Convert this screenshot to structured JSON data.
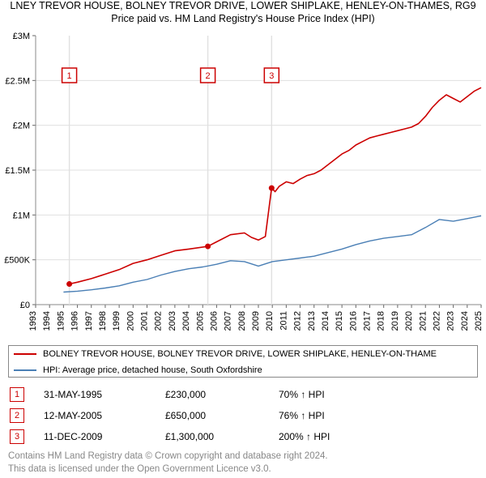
{
  "title_line1": "LNEY TREVOR HOUSE, BOLNEY TREVOR DRIVE, LOWER SHIPLAKE, HENLEY-ON-THAMES, RG9",
  "title_line2": "Price paid vs. HM Land Registry's House Price Index (HPI)",
  "chart": {
    "type": "line",
    "background_color": "#ffffff",
    "grid_color": "#e0e0e0",
    "axis_color": "#888888",
    "tick_color": "#666666",
    "label_color": "#000000",
    "label_fontsize": 11,
    "title_fontsize": 12.5,
    "x": {
      "min": 1993,
      "max": 2025,
      "tick_step": 1,
      "labels": [
        "1993",
        "1994",
        "1995",
        "1996",
        "1997",
        "1998",
        "1999",
        "2000",
        "2001",
        "2002",
        "2003",
        "2004",
        "2005",
        "2006",
        "2007",
        "2008",
        "2009",
        "2010",
        "2011",
        "2012",
        "2013",
        "2014",
        "2015",
        "2016",
        "2017",
        "2018",
        "2019",
        "2020",
        "2021",
        "2022",
        "2023",
        "2024",
        "2025"
      ]
    },
    "y": {
      "min": 0,
      "max": 3000000,
      "tick_step": 500000,
      "labels": [
        "£0",
        "£500K",
        "£1M",
        "£1.5M",
        "£2M",
        "£2.5M",
        "£3M"
      ]
    },
    "series": [
      {
        "name": "property",
        "label": "BOLNEY TREVOR HOUSE, BOLNEY TREVOR DRIVE, LOWER SHIPLAKE, HENLEY-ON-THAME",
        "color": "#cc0000",
        "line_width": 1.6,
        "marker_radius": 3.5,
        "markers_at": [
          1995.42,
          2005.37,
          2009.95
        ],
        "data": [
          [
            1995.42,
            230000
          ],
          [
            1996,
            250000
          ],
          [
            1997,
            290000
          ],
          [
            1998,
            340000
          ],
          [
            1999,
            390000
          ],
          [
            2000,
            460000
          ],
          [
            2001,
            500000
          ],
          [
            2002,
            550000
          ],
          [
            2003,
            600000
          ],
          [
            2004,
            620000
          ],
          [
            2005.37,
            650000
          ],
          [
            2006,
            700000
          ],
          [
            2007,
            780000
          ],
          [
            2008,
            800000
          ],
          [
            2008.5,
            750000
          ],
          [
            2009,
            720000
          ],
          [
            2009.5,
            760000
          ],
          [
            2009.95,
            1300000
          ],
          [
            2010.2,
            1260000
          ],
          [
            2010.5,
            1320000
          ],
          [
            2011,
            1370000
          ],
          [
            2011.5,
            1350000
          ],
          [
            2012,
            1400000
          ],
          [
            2012.5,
            1440000
          ],
          [
            2013,
            1460000
          ],
          [
            2013.5,
            1500000
          ],
          [
            2014,
            1560000
          ],
          [
            2014.5,
            1620000
          ],
          [
            2015,
            1680000
          ],
          [
            2015.5,
            1720000
          ],
          [
            2016,
            1780000
          ],
          [
            2016.5,
            1820000
          ],
          [
            2017,
            1860000
          ],
          [
            2017.5,
            1880000
          ],
          [
            2018,
            1900000
          ],
          [
            2018.5,
            1920000
          ],
          [
            2019,
            1940000
          ],
          [
            2019.5,
            1960000
          ],
          [
            2020,
            1980000
          ],
          [
            2020.5,
            2020000
          ],
          [
            2021,
            2100000
          ],
          [
            2021.5,
            2200000
          ],
          [
            2022,
            2280000
          ],
          [
            2022.5,
            2340000
          ],
          [
            2023,
            2300000
          ],
          [
            2023.5,
            2260000
          ],
          [
            2024,
            2320000
          ],
          [
            2024.5,
            2380000
          ],
          [
            2025,
            2420000
          ]
        ]
      },
      {
        "name": "hpi",
        "label": "HPI: Average price, detached house, South Oxfordshire",
        "color": "#4a7fb5",
        "line_width": 1.4,
        "data": [
          [
            1995,
            140000
          ],
          [
            1996,
            150000
          ],
          [
            1997,
            165000
          ],
          [
            1998,
            185000
          ],
          [
            1999,
            210000
          ],
          [
            2000,
            250000
          ],
          [
            2001,
            280000
          ],
          [
            2002,
            330000
          ],
          [
            2003,
            370000
          ],
          [
            2004,
            400000
          ],
          [
            2005,
            420000
          ],
          [
            2006,
            450000
          ],
          [
            2007,
            490000
          ],
          [
            2008,
            480000
          ],
          [
            2009,
            430000
          ],
          [
            2010,
            480000
          ],
          [
            2011,
            500000
          ],
          [
            2012,
            520000
          ],
          [
            2013,
            540000
          ],
          [
            2014,
            580000
          ],
          [
            2015,
            620000
          ],
          [
            2016,
            670000
          ],
          [
            2017,
            710000
          ],
          [
            2018,
            740000
          ],
          [
            2019,
            760000
          ],
          [
            2020,
            780000
          ],
          [
            2021,
            860000
          ],
          [
            2022,
            950000
          ],
          [
            2023,
            930000
          ],
          [
            2024,
            960000
          ],
          [
            2025,
            990000
          ]
        ]
      }
    ],
    "sale_markers": [
      {
        "n": "1",
        "x": 1995.42,
        "date": "31-MAY-1995",
        "price": "£230,000",
        "hpi": "70% ↑ HPI"
      },
      {
        "n": "2",
        "x": 2005.37,
        "date": "12-MAY-2005",
        "price": "£650,000",
        "hpi": "76% ↑ HPI"
      },
      {
        "n": "3",
        "x": 2009.95,
        "date": "11-DEC-2009",
        "price": "£1,300,000",
        "hpi": "200% ↑ HPI"
      }
    ],
    "marker_box": {
      "border_color": "#cc0000",
      "text_color": "#cc0000",
      "size": 16,
      "fontsize": 11
    },
    "legend_border_color": "#888888",
    "legend_fontsize": 11
  },
  "attribution_line1": "Contains HM Land Registry data © Crown copyright and database right 2024.",
  "attribution_line2": "This data is licensed under the Open Government Licence v3.0."
}
